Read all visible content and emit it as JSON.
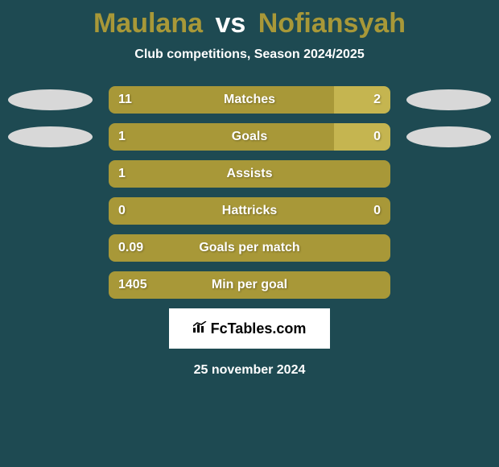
{
  "header": {
    "player_left": "Maulana",
    "vs": "vs",
    "player_right": "Nofiansyah",
    "subtitle": "Club competitions, Season 2024/2025"
  },
  "colors": {
    "background": "#1e4a52",
    "bar_dark": "#a89838",
    "bar_light": "#c5b550",
    "ellipse": "#d8d8d8",
    "text_white": "#ffffff",
    "title_accent": "#a89838"
  },
  "stats": [
    {
      "label": "Matches",
      "left_value": "11",
      "right_value": "2",
      "left_pct": 80,
      "right_pct": 20,
      "show_ellipses": true,
      "show_right": true
    },
    {
      "label": "Goals",
      "left_value": "1",
      "right_value": "0",
      "left_pct": 80,
      "right_pct": 20,
      "show_ellipses": true,
      "show_right": true
    },
    {
      "label": "Assists",
      "left_value": "1",
      "right_value": "",
      "left_pct": 100,
      "right_pct": 0,
      "show_ellipses": false,
      "show_right": false
    },
    {
      "label": "Hattricks",
      "left_value": "0",
      "right_value": "0",
      "left_pct": 100,
      "right_pct": 0,
      "show_ellipses": false,
      "show_right": true
    },
    {
      "label": "Goals per match",
      "left_value": "0.09",
      "right_value": "",
      "left_pct": 100,
      "right_pct": 0,
      "show_ellipses": false,
      "show_right": false
    },
    {
      "label": "Min per goal",
      "left_value": "1405",
      "right_value": "",
      "left_pct": 100,
      "right_pct": 0,
      "show_ellipses": false,
      "show_right": false
    }
  ],
  "footer": {
    "logo_text": "FcTables.com",
    "date": "25 november 2024"
  }
}
